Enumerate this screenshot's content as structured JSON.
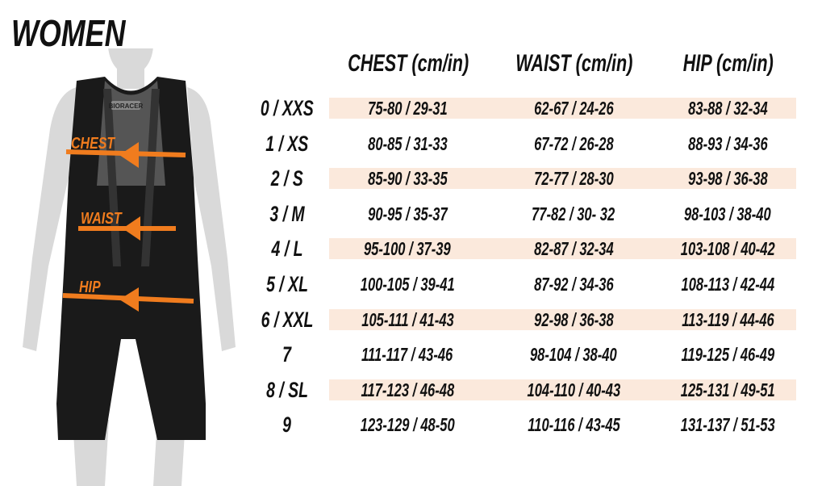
{
  "title": "WOMEN",
  "figure": {
    "brand_logo": "BIORACER",
    "labels": {
      "chest": "CHEST",
      "waist": "WAIST",
      "hip": "HIP"
    },
    "arrow_color": "#f07c1e"
  },
  "table": {
    "headers": [
      "CHEST (cm/in)",
      "WAIST (cm/in)",
      "HIP (cm/in)"
    ],
    "band_color": "#fbe9dc",
    "rows": [
      {
        "size": "0 / XXS",
        "chest": "75-80 / 29-31",
        "waist": "62-67 / 24-26",
        "hip": "83-88 / 32-34"
      },
      {
        "size": "1 / XS",
        "chest": "80-85 / 31-33",
        "waist": "67-72 / 26-28",
        "hip": "88-93 / 34-36"
      },
      {
        "size": "2 / S",
        "chest": "85-90 / 33-35",
        "waist": "72-77 / 28-30",
        "hip": "93-98 / 36-38"
      },
      {
        "size": "3 / M",
        "chest": "90-95 / 35-37",
        "waist": "77-82 / 30- 32",
        "hip": "98-103 / 38-40"
      },
      {
        "size": "4 / L",
        "chest": "95-100 / 37-39",
        "waist": "82-87 / 32-34",
        "hip": "103-108 / 40-42"
      },
      {
        "size": "5 / XL",
        "chest": "100-105 / 39-41",
        "waist": "87-92 / 34-36",
        "hip": "108-113 / 42-44"
      },
      {
        "size": "6 / XXL",
        "chest": "105-111 / 41-43",
        "waist": "92-98 / 36-38",
        "hip": "113-119 / 44-46"
      },
      {
        "size": "7",
        "chest": "111-117 / 43-46",
        "waist": "98-104 / 38-40",
        "hip": "119-125 / 46-49"
      },
      {
        "size": "8 / SL",
        "chest": "117-123 / 46-48",
        "waist": "104-110 / 40-43",
        "hip": "125-131 / 49-51"
      },
      {
        "size": "9",
        "chest": "123-129 / 48-50",
        "waist": "110-116 / 43-45",
        "hip": "131-137 / 51-53"
      }
    ]
  }
}
